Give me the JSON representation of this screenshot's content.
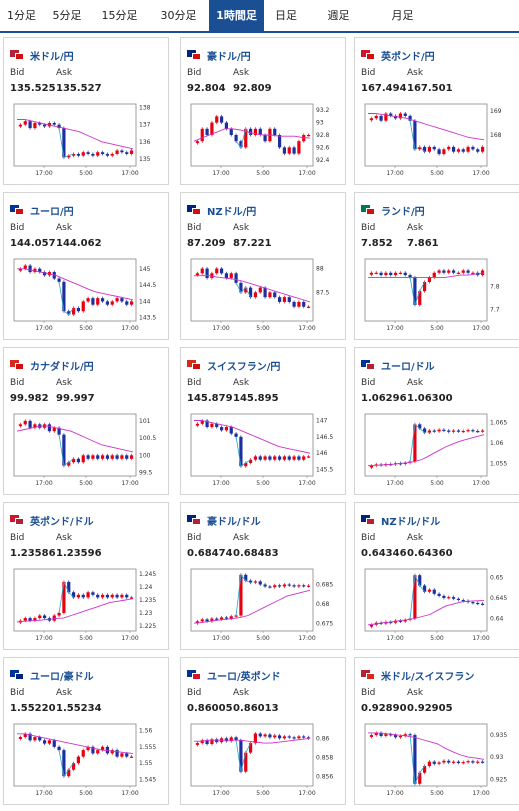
{
  "tabs": [
    {
      "label": "1分足",
      "active": false
    },
    {
      "label": "5分足",
      "active": false
    },
    {
      "label": "15分足",
      "active": false
    },
    {
      "label": "30分足",
      "active": false
    },
    {
      "label": "1時間足",
      "active": true
    },
    {
      "label": "日足",
      "active": false
    },
    {
      "label": "週足",
      "active": false
    },
    {
      "label": "月足",
      "active": false
    }
  ],
  "labels": {
    "bid": "Bid",
    "ask": "Ask"
  },
  "x_ticks": [
    "17:00",
    "5:00",
    "17:00"
  ],
  "colors": {
    "accent": "#1b4f93",
    "up": "#e60012",
    "down": "#1b2f9e",
    "ma": "#cc33cc",
    "spike": "#2aa3d3"
  },
  "cards": [
    {
      "pair": "米ドル/円",
      "flag": [
        "#b22234",
        "#d01010"
      ],
      "bid": "135.525",
      "ask": "135.527",
      "y_ticks": [
        "138",
        "137",
        "136",
        "135"
      ],
      "ylim": [
        134.6,
        138.2
      ],
      "shape": [
        137.0,
        137.2,
        136.8,
        137.1,
        137.0,
        136.9,
        137.1,
        137.0,
        136.8,
        135.1,
        135.2,
        135.3,
        135.2,
        135.4,
        135.3,
        135.2,
        135.4,
        135.3,
        135.2,
        135.3,
        135.5,
        135.4,
        135.3,
        135.5
      ],
      "ma": [
        137.3,
        137.3,
        137.2,
        137.1,
        137.0,
        136.9,
        136.8,
        136.7,
        136.6,
        136.4,
        136.2,
        136.0,
        135.9,
        135.8,
        135.7,
        135.6
      ]
    },
    {
      "pair": "豪ドル/円",
      "flag": [
        "#00247d",
        "#d01010"
      ],
      "bid": "92.804",
      "ask": "92.809",
      "y_ticks": [
        "93.2",
        "93",
        "92.8",
        "92.6",
        "92.4"
      ],
      "ylim": [
        92.3,
        93.3
      ],
      "shape": [
        92.7,
        92.9,
        92.8,
        93.0,
        93.1,
        93.0,
        92.9,
        92.8,
        92.7,
        92.6,
        92.9,
        92.8,
        92.9,
        92.8,
        92.7,
        92.9,
        92.8,
        92.6,
        92.5,
        92.6,
        92.5,
        92.7,
        92.8,
        92.8
      ],
      "ma": [
        92.7,
        92.75,
        92.8,
        92.85,
        92.9,
        92.9,
        92.88,
        92.85,
        92.82,
        92.8,
        92.8,
        92.78,
        92.78,
        92.78,
        92.76,
        92.75
      ]
    },
    {
      "pair": "英ポンド/円",
      "flag": [
        "#cf142b",
        "#d01010"
      ],
      "bid": "167.494",
      "ask": "167.501",
      "y_ticks": [
        "169",
        "168"
      ],
      "ylim": [
        166.7,
        169.3
      ],
      "shape": [
        168.7,
        168.8,
        168.6,
        168.9,
        168.8,
        168.7,
        168.9,
        168.8,
        168.6,
        167.4,
        167.5,
        167.3,
        167.5,
        167.4,
        167.2,
        167.4,
        167.5,
        167.3,
        167.4,
        167.3,
        167.5,
        167.4,
        167.3,
        167.5
      ],
      "ma": [
        168.9,
        168.9,
        168.85,
        168.8,
        168.75,
        168.7,
        168.6,
        168.5,
        168.4,
        168.3,
        168.2,
        168.1,
        168.0,
        167.9,
        167.85,
        167.8
      ]
    },
    {
      "pair": "ユーロ/円",
      "flag": [
        "#003399",
        "#d01010"
      ],
      "bid": "144.057",
      "ask": "144.062",
      "y_ticks": [
        "145",
        "144.5",
        "144",
        "143.5"
      ],
      "ylim": [
        143.4,
        145.3
      ],
      "shape": [
        145.0,
        145.1,
        144.9,
        145.0,
        144.9,
        144.8,
        144.9,
        144.7,
        144.6,
        143.7,
        143.6,
        143.8,
        143.7,
        144.0,
        144.1,
        143.9,
        144.1,
        144.0,
        143.9,
        144.0,
        144.1,
        144.0,
        143.9,
        144.0
      ],
      "ma": [
        145.0,
        145.0,
        144.95,
        144.9,
        144.85,
        144.8,
        144.7,
        144.6,
        144.5,
        144.4,
        144.3,
        144.25,
        144.2,
        144.15,
        144.1,
        144.05
      ]
    },
    {
      "pair": "NZドル/円",
      "flag": [
        "#00247d",
        "#d01010"
      ],
      "bid": "87.209",
      "ask": "87.221",
      "y_ticks": [
        "88",
        "87.5"
      ],
      "ylim": [
        86.9,
        88.2
      ],
      "shape": [
        87.9,
        88.0,
        87.8,
        87.9,
        88.0,
        87.9,
        87.8,
        87.9,
        87.7,
        87.5,
        87.6,
        87.4,
        87.5,
        87.6,
        87.4,
        87.5,
        87.4,
        87.3,
        87.4,
        87.3,
        87.2,
        87.3,
        87.2,
        87.2
      ],
      "ma": [
        87.85,
        87.85,
        87.85,
        87.82,
        87.8,
        87.78,
        87.75,
        87.7,
        87.65,
        87.6,
        87.55,
        87.5,
        87.45,
        87.4,
        87.35,
        87.3
      ]
    },
    {
      "pair": "ランド/円",
      "flag": [
        "#007a4d",
        "#d01010"
      ],
      "bid": "7.852",
      "ask": "7.861",
      "y_ticks": [
        "7.8",
        "7.7"
      ],
      "ylim": [
        7.65,
        7.92
      ],
      "shape": [
        7.86,
        7.86,
        7.85,
        7.86,
        7.85,
        7.86,
        7.86,
        7.85,
        7.84,
        7.72,
        7.78,
        7.82,
        7.84,
        7.86,
        7.87,
        7.86,
        7.87,
        7.86,
        7.86,
        7.87,
        7.86,
        7.86,
        7.85,
        7.87
      ],
      "ma": [
        7.84,
        7.84,
        7.84,
        7.84,
        7.84,
        7.84,
        7.84,
        7.84,
        7.84,
        7.84,
        7.84,
        7.845,
        7.85,
        7.85,
        7.855,
        7.86
      ]
    },
    {
      "pair": "カナダドル/円",
      "flag": [
        "#d52b1e",
        "#d01010"
      ],
      "bid": "99.982",
      "ask": "99.997",
      "y_ticks": [
        "101",
        "100.5",
        "100",
        "99.5"
      ],
      "ylim": [
        99.4,
        101.2
      ],
      "shape": [
        100.9,
        101.0,
        100.8,
        100.9,
        100.8,
        100.9,
        100.7,
        100.8,
        100.6,
        99.7,
        99.8,
        99.9,
        99.8,
        100.0,
        99.9,
        100.0,
        99.9,
        100.0,
        99.9,
        100.0,
        99.9,
        100.0,
        99.9,
        100.0
      ],
      "ma": [
        100.7,
        100.75,
        100.8,
        100.85,
        100.85,
        100.8,
        100.75,
        100.7,
        100.6,
        100.5,
        100.4,
        100.3,
        100.25,
        100.2,
        100.15,
        100.1
      ]
    },
    {
      "pair": "スイスフラン/円",
      "flag": [
        "#d52b1e",
        "#d01010"
      ],
      "bid": "145.879",
      "ask": "145.895",
      "y_ticks": [
        "147",
        "146.5",
        "146",
        "145.5"
      ],
      "ylim": [
        145.3,
        147.2
      ],
      "shape": [
        146.9,
        147.0,
        146.8,
        146.9,
        146.8,
        146.7,
        146.8,
        146.6,
        146.5,
        145.6,
        145.7,
        145.8,
        145.9,
        145.8,
        145.9,
        145.8,
        145.9,
        145.8,
        145.9,
        145.8,
        145.9,
        145.8,
        145.9,
        145.9
      ],
      "ma": [
        147.0,
        147.0,
        146.95,
        146.9,
        146.85,
        146.8,
        146.7,
        146.6,
        146.5,
        146.4,
        146.3,
        146.2,
        146.15,
        146.1,
        146.05,
        146.0
      ]
    },
    {
      "pair": "ユーロ/ドル",
      "flag": [
        "#003399",
        "#b22234"
      ],
      "bid": "1.06296",
      "ask": "1.06300",
      "y_ticks": [
        "1.065",
        "1.06",
        "1.055"
      ],
      "ylim": [
        1.052,
        1.067
      ],
      "shape": [
        1.0545,
        1.0548,
        1.0546,
        1.0549,
        1.0548,
        1.0551,
        1.0549,
        1.0552,
        1.0555,
        1.0645,
        1.0635,
        1.0625,
        1.063,
        1.0628,
        1.0632,
        1.063,
        1.0627,
        1.063,
        1.0628,
        1.0629,
        1.0631,
        1.0629,
        1.0628,
        1.063
      ],
      "ma": [
        1.0545,
        1.0546,
        1.0547,
        1.0548,
        1.055,
        1.0552,
        1.0555,
        1.056,
        1.057,
        1.058,
        1.059,
        1.0598,
        1.0605,
        1.061,
        1.0615,
        1.062
      ]
    },
    {
      "pair": "英ポンド/ドル",
      "flag": [
        "#cf142b",
        "#b22234"
      ],
      "bid": "1.23586",
      "ask": "1.23596",
      "y_ticks": [
        "1.245",
        "1.24",
        "1.235",
        "1.23",
        "1.225"
      ],
      "ylim": [
        1.223,
        1.247
      ],
      "shape": [
        1.227,
        1.228,
        1.227,
        1.228,
        1.229,
        1.228,
        1.227,
        1.229,
        1.23,
        1.242,
        1.238,
        1.236,
        1.237,
        1.236,
        1.238,
        1.237,
        1.236,
        1.237,
        1.236,
        1.237,
        1.236,
        1.237,
        1.236,
        1.236
      ],
      "ma": [
        1.2265,
        1.2268,
        1.227,
        1.2272,
        1.2275,
        1.2278,
        1.228,
        1.229,
        1.23,
        1.231,
        1.232,
        1.233,
        1.234,
        1.2345,
        1.235,
        1.2355
      ]
    },
    {
      "pair": "豪ドル/ドル",
      "flag": [
        "#00247d",
        "#b22234"
      ],
      "bid": "0.68474",
      "ask": "0.68483",
      "y_ticks": [
        "0.685",
        "0.68",
        "0.675"
      ],
      "ylim": [
        0.673,
        0.689
      ],
      "shape": [
        0.6755,
        0.676,
        0.6755,
        0.6762,
        0.676,
        0.6765,
        0.6762,
        0.6768,
        0.677,
        0.6875,
        0.686,
        0.6855,
        0.6858,
        0.685,
        0.6845,
        0.6843,
        0.6848,
        0.6845,
        0.685,
        0.6848,
        0.6845,
        0.6848,
        0.6846,
        0.6847
      ],
      "ma": [
        0.675,
        0.6752,
        0.6755,
        0.6758,
        0.676,
        0.6762,
        0.6765,
        0.677,
        0.678,
        0.679,
        0.68,
        0.681,
        0.682,
        0.6825,
        0.683,
        0.6835
      ]
    },
    {
      "pair": "NZドル/ドル",
      "flag": [
        "#00247d",
        "#b22234"
      ],
      "bid": "0.64346",
      "ask": "0.64360",
      "y_ticks": [
        "0.65",
        "0.645",
        "0.64"
      ],
      "ylim": [
        0.637,
        0.652
      ],
      "shape": [
        0.6385,
        0.639,
        0.6388,
        0.6392,
        0.639,
        0.6395,
        0.6393,
        0.6397,
        0.64,
        0.6505,
        0.648,
        0.6465,
        0.647,
        0.646,
        0.6455,
        0.645,
        0.6452,
        0.6448,
        0.6445,
        0.6443,
        0.644,
        0.6438,
        0.6436,
        0.6435
      ],
      "ma": [
        0.6385,
        0.6387,
        0.639,
        0.6392,
        0.6395,
        0.6397,
        0.64,
        0.6405,
        0.641,
        0.642,
        0.643,
        0.6435,
        0.644,
        0.6442,
        0.6443,
        0.6444
      ]
    },
    {
      "pair": "ユーロ/豪ドル",
      "flag": [
        "#003399",
        "#00247d"
      ],
      "bid": "1.55220",
      "ask": "1.55234",
      "y_ticks": [
        "1.56",
        "1.555",
        "1.55",
        "1.545"
      ],
      "ylim": [
        1.543,
        1.562
      ],
      "shape": [
        1.558,
        1.559,
        1.557,
        1.558,
        1.557,
        1.556,
        1.557,
        1.555,
        1.554,
        1.546,
        1.548,
        1.55,
        1.552,
        1.554,
        1.555,
        1.553,
        1.554,
        1.555,
        1.553,
        1.554,
        1.552,
        1.553,
        1.552,
        1.552
      ],
      "ma": [
        1.559,
        1.559,
        1.5585,
        1.558,
        1.5575,
        1.557,
        1.5565,
        1.556,
        1.5555,
        1.555,
        1.5545,
        1.554,
        1.5538,
        1.5535,
        1.5532,
        1.553
      ]
    },
    {
      "pair": "ユーロ/英ポンド",
      "flag": [
        "#003399",
        "#cf142b"
      ],
      "bid": "0.86005",
      "ask": "0.86013",
      "y_ticks": [
        "0.86",
        "0.858",
        "0.856"
      ],
      "ylim": [
        0.855,
        0.8615
      ],
      "shape": [
        0.8595,
        0.8598,
        0.8594,
        0.8599,
        0.8596,
        0.86,
        0.8597,
        0.8601,
        0.8598,
        0.8565,
        0.8585,
        0.8595,
        0.8605,
        0.8602,
        0.8604,
        0.8601,
        0.8603,
        0.86,
        0.8602,
        0.8601,
        0.86,
        0.8602,
        0.8601,
        0.86
      ],
      "ma": [
        0.8597,
        0.8597,
        0.8598,
        0.8598,
        0.8598,
        0.8598,
        0.8598,
        0.8597,
        0.8596,
        0.8595,
        0.8595,
        0.8596,
        0.8597,
        0.8598,
        0.8599,
        0.86
      ]
    },
    {
      "pair": "米ドル/スイスフラン",
      "flag": [
        "#b22234",
        "#d52b1e"
      ],
      "bid": "0.92890",
      "ask": "0.92905",
      "y_ticks": [
        "0.935",
        "0.93",
        "0.925"
      ],
      "ylim": [
        0.9235,
        0.9375
      ],
      "shape": [
        0.935,
        0.9355,
        0.9348,
        0.9352,
        0.935,
        0.9345,
        0.9348,
        0.9352,
        0.935,
        0.924,
        0.9265,
        0.928,
        0.929,
        0.9285,
        0.9288,
        0.9292,
        0.9288,
        0.929,
        0.9287,
        0.9289,
        0.9291,
        0.9288,
        0.929,
        0.9289
      ],
      "ma": [
        0.9355,
        0.9355,
        0.9354,
        0.9352,
        0.935,
        0.9348,
        0.9345,
        0.934,
        0.9335,
        0.933,
        0.932,
        0.9312,
        0.9305,
        0.93,
        0.9298,
        0.9295
      ]
    }
  ]
}
